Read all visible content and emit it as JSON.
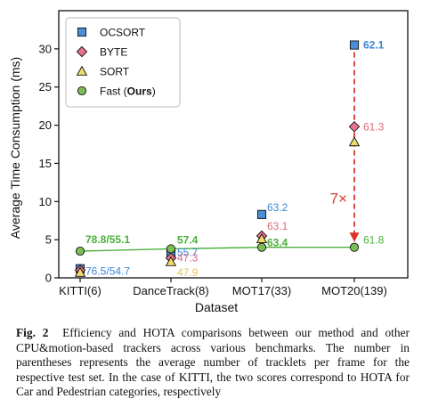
{
  "chart_data": {
    "type": "scatter",
    "xlabel": "Dataset",
    "ylabel": "Average Time Consumption (ms)",
    "categories": [
      "KITTI(6)",
      "DanceTrack(8)",
      "MOT17(33)",
      "MOT20(139)"
    ],
    "ylim": [
      0,
      35
    ],
    "yticks": [
      0,
      5,
      10,
      15,
      20,
      25,
      30
    ],
    "legend_position": "top-left",
    "series": [
      {
        "name": "OCSORT",
        "marker": "square",
        "color": "#4a90d9",
        "values": [
          1.2,
          3.1,
          8.3,
          30.5
        ],
        "labels": [
          "76.5/54.7",
          "55.7",
          "63.2",
          "62.1"
        ]
      },
      {
        "name": "BYTE",
        "marker": "diamond",
        "color": "#e8738c",
        "values": [
          1.0,
          2.6,
          5.5,
          19.8
        ],
        "labels": [
          "",
          "47.3",
          "63.1",
          "61.3"
        ]
      },
      {
        "name": "SORT",
        "marker": "triangle",
        "color": "#f0dc6a",
        "values": [
          0.7,
          2.1,
          5.1,
          17.8
        ],
        "labels": [
          "",
          "47.9",
          "",
          ""
        ]
      },
      {
        "name": "Fast (Ours)",
        "name_plain": "Fast (",
        "name_bold": "Ours",
        "name_close": ")",
        "marker": "circle",
        "color": "#7dbd55",
        "line_color": "#4caf3c",
        "values": [
          3.5,
          3.8,
          4.0,
          4.0
        ],
        "labels": [
          "78.8/55.1",
          "57.4",
          "63.4",
          "61.8"
        ]
      }
    ],
    "annotation": {
      "text": "7×",
      "color": "#d9362a",
      "from_value": 30.5,
      "to_value": 4.0,
      "category_index": 3
    },
    "colors": {
      "ocsort_label": "#3a86d6",
      "byte_label": "#e06a7e",
      "sort_label": "#e0c85a",
      "fast_label": "#4caf3c",
      "arrow": "#d9362a"
    }
  },
  "caption": {
    "label": "Fig. 2",
    "text": "Efficiency and HOTA comparisons between our method and other CPU&motion-based trackers across various benchmarks. The number in parentheses represents the average number of tracklets per frame for the respective test set. In the case of KITTI, the two scores correspond to HOTA for Car and Pedestrian categories, respectively"
  }
}
